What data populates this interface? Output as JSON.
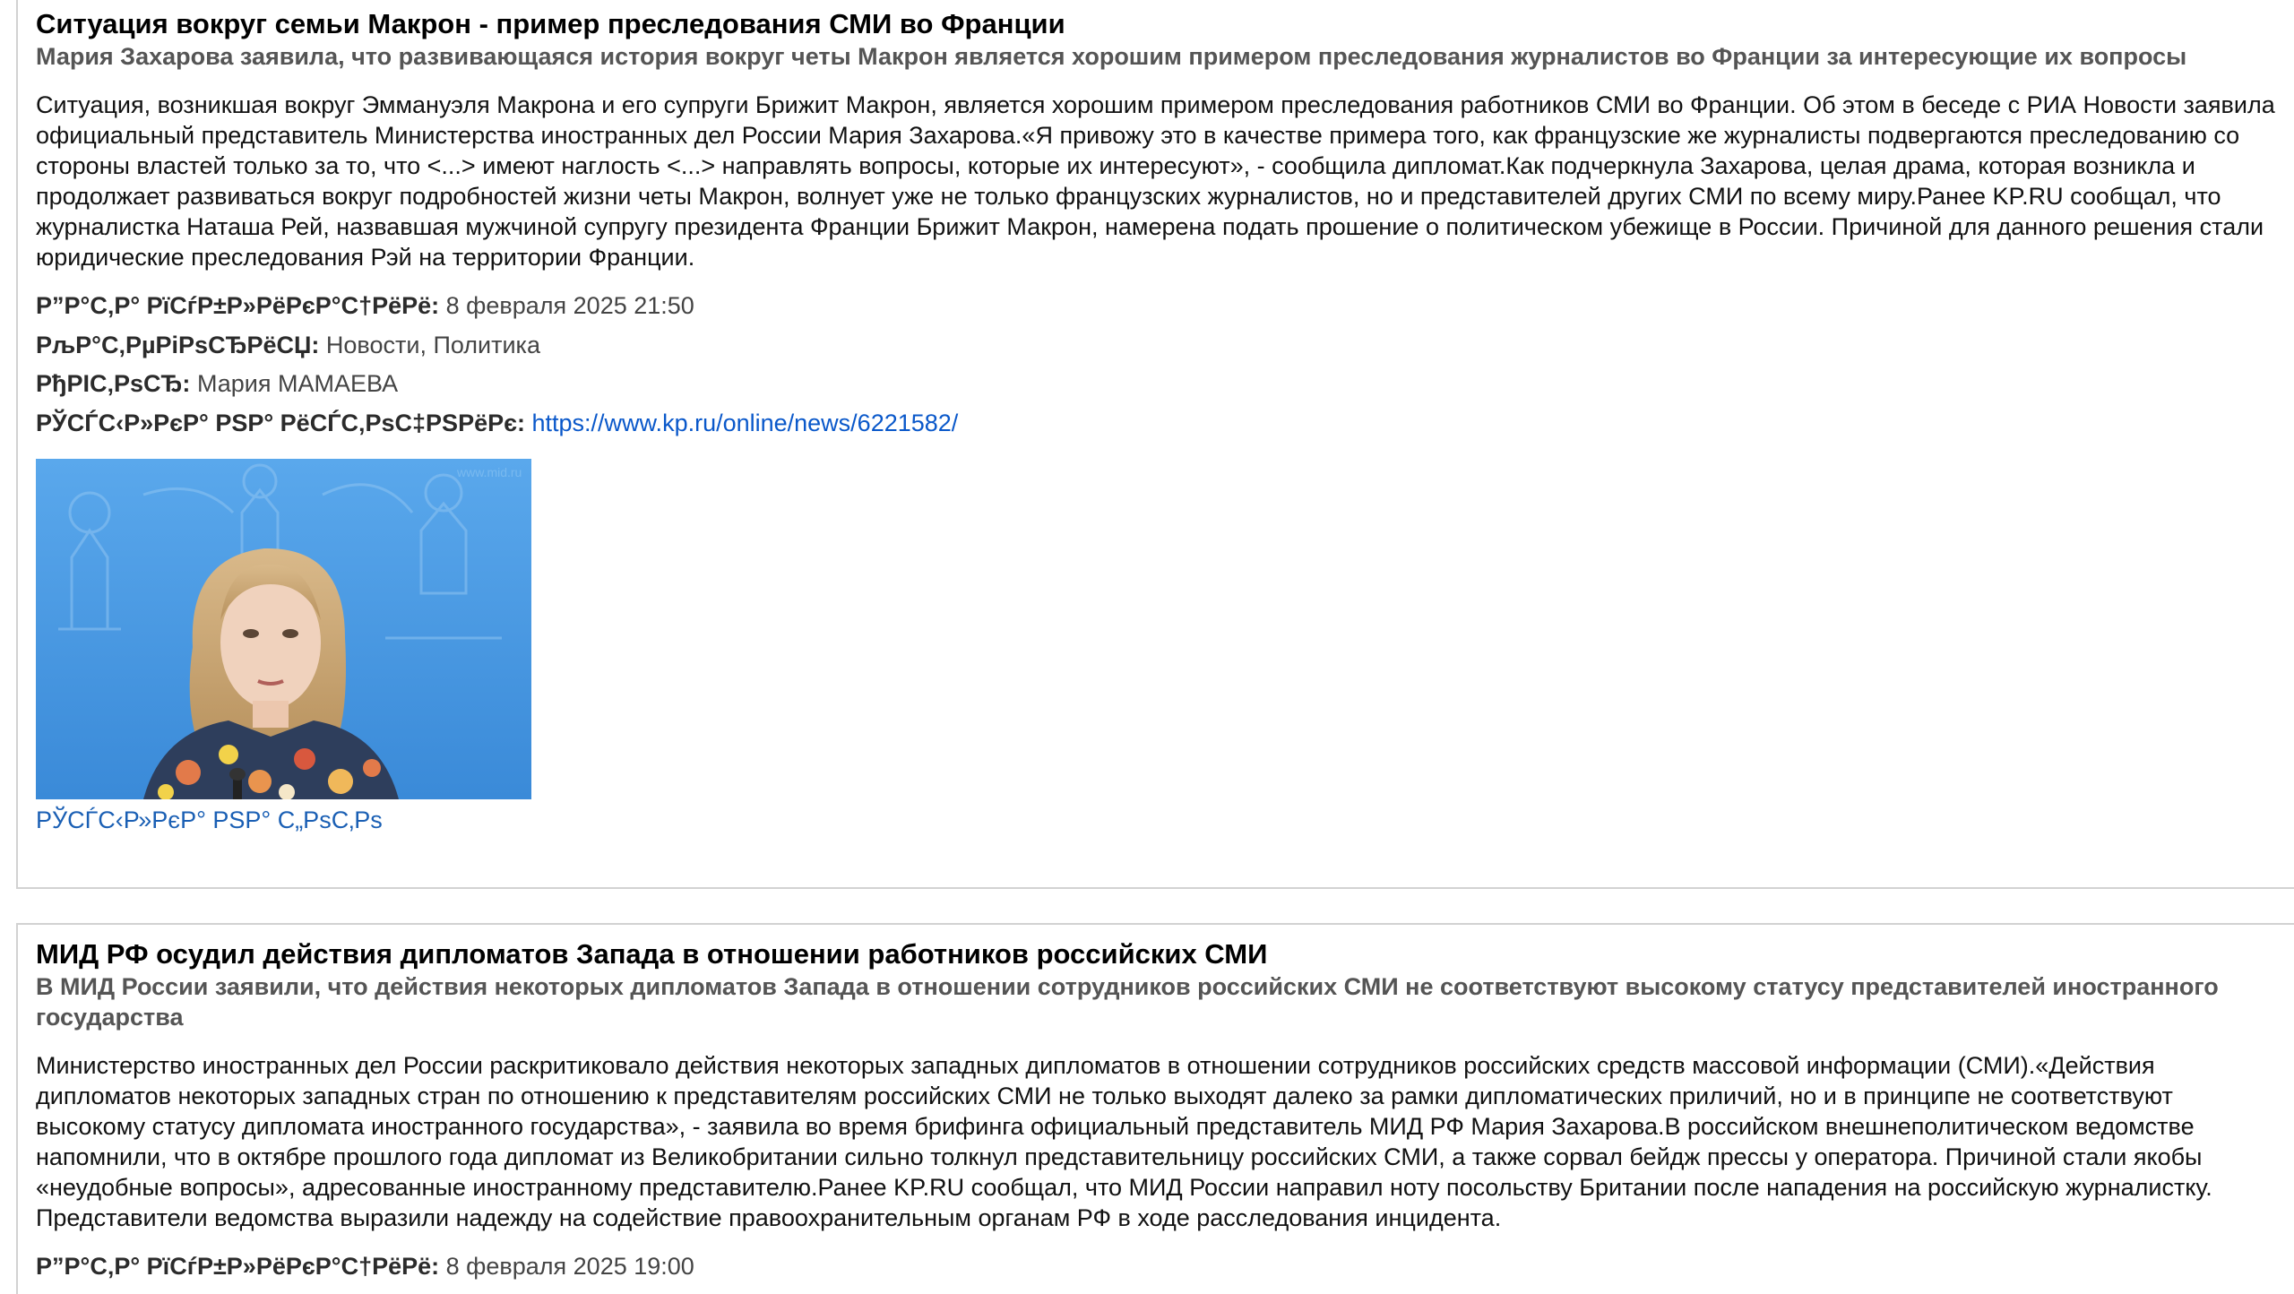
{
  "articles": [
    {
      "title": "Ситуация вокруг семьи Макрон - пример преследования СМИ во Франции",
      "subtitle": "Мария Захарова заявила, что развивающаяся история вокруг четы Макрон является хорошим примером преследования журналистов во Франции за интересующие их вопросы",
      "body": "Ситуация, возникшая вокруг Эммануэля Макрона и его супруги Брижит Макрон, является хорошим примером преследования работников СМИ во Франции. Об этом в беседе с РИА Новости заявила официальный представитель Министерства иностранных дел России Мария Захарова.«Я привожу это в качестве примера того, как французские же журналисты подвергаются преследованию со стороны властей только за то, что <...> имеют наглость <...> направлять вопросы, которые их интересуют», - сообщила дипломат.Как подчеркнула Захарова, целая драма, которая возникла и продолжает развиваться вокруг подробностей жизни четы Макрон, волнует уже не только французских журналистов, но и представителей других СМИ по всему миру.Ранее KP.RU сообщал, что журналистка Наташа Рей, назвавшая мужчиной супругу президента Франции Брижит Макрон, намерена подать прошение о политическом убежище в России. Причиной для данного решения стали юридические преследования Рэй на территории Франции.",
      "meta": {
        "date_label": "Р”Р°С‚Р° РїСѓР±Р»РёРєР°С†РёРё:",
        "date_value": "8 февраля 2025 21:50",
        "rubric_label": "РљР°С‚РµРіРѕСЂРёСЏ:",
        "rubric_value": "Новости, Политика",
        "author_label": "РђРІС‚РѕСЂ:",
        "author_value": "Мария МАМАЕВА",
        "source_label": "РЎСЃС‹Р»РєР° РЅР° РёСЃС‚РѕС‡РЅРёРє:",
        "source_value": "https://www.kp.ru/online/news/6221582/"
      },
      "photo_link": "РЎСЃС‹Р»РєР° РЅР° С„РѕС‚Рѕ"
    },
    {
      "title": "МИД РФ осудил действия дипломатов Запада в отношении работников российских СМИ",
      "subtitle": "В МИД России заявили, что действия некоторых дипломатов Запада в отношении сотрудников российских СМИ не соответствуют высокому статусу представителей иностранного государства",
      "body": "Министерство иностранных дел России раскритиковало действия некоторых западных дипломатов в отношении сотрудников российских средств массовой информации (СМИ).«Действия дипломатов некоторых западных стран по отношению к представителям российских СМИ не только выходят далеко за рамки дипломатических приличий, но и в принципе не соответствуют высокому статусу дипломата иностранного государства», - заявила во время брифинга официальный представитель МИД РФ Мария Захарова.В российском внешнеполитическом ведомстве напомнили, что в октябре прошлого года дипломат из Великобритании сильно толкнул представительницу российских СМИ, а также сорвал бейдж прессы у оператора. Причиной стали якобы «неудобные вопросы», адресованные иностранному представителю.Ранее KP.RU сообщал, что МИД России направил ноту посольству Британии после нападения на российскую журналистку. Представители ведомства выразили надежду на содействие правоохранительным органам РФ в ходе расследования инцидента.",
      "meta": {
        "date_label": "Р”Р°С‚Р° РїСѓР±Р»РёРєР°С†РёРё:",
        "date_value": "8 февраля 2025 19:00"
      }
    }
  ],
  "colors": {
    "title": "#000000",
    "subtitle": "#555555",
    "link": "#0a58ca",
    "card_border": "#d2d2d2",
    "photo_background": "#3f95e0"
  }
}
